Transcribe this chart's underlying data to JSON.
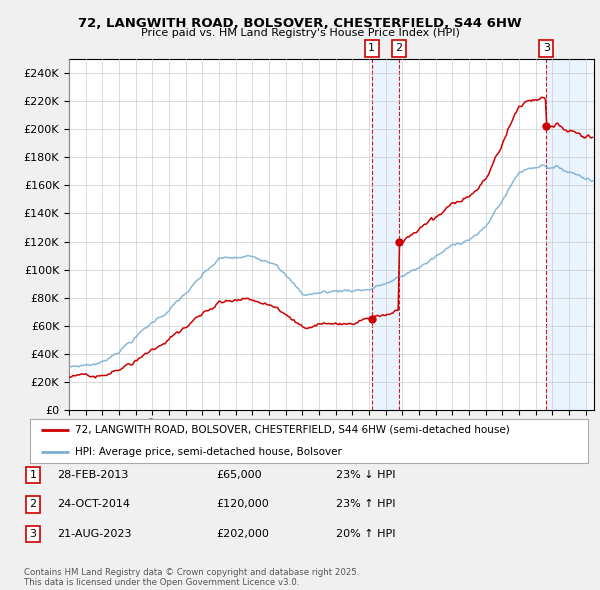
{
  "title": "72, LANGWITH ROAD, BOLSOVER, CHESTERFIELD, S44 6HW",
  "subtitle": "Price paid vs. HM Land Registry's House Price Index (HPI)",
  "ylim": [
    0,
    250000
  ],
  "yticks": [
    0,
    20000,
    40000,
    60000,
    80000,
    100000,
    120000,
    140000,
    160000,
    180000,
    200000,
    220000,
    240000
  ],
  "bg_color": "#f0f0f0",
  "plot_bg": "#ffffff",
  "sale_years": [
    2013.1667,
    2014.7917,
    2023.6333
  ],
  "sale_prices": [
    65000,
    120000,
    202000
  ],
  "sale_labels": [
    "1",
    "2",
    "3"
  ],
  "sale_pct": [
    "23% ↓ HPI",
    "23% ↑ HPI",
    "20% ↑ HPI"
  ],
  "sale_dates_str": [
    "28-FEB-2013",
    "24-OCT-2014",
    "21-AUG-2023"
  ],
  "legend_property": "72, LANGWITH ROAD, BOLSOVER, CHESTERFIELD, S44 6HW (semi-detached house)",
  "legend_hpi": "HPI: Average price, semi-detached house, Bolsover",
  "footer": "Contains HM Land Registry data © Crown copyright and database right 2025.\nThis data is licensed under the Open Government Licence v3.0.",
  "property_color": "#cc0000",
  "hpi_color": "#7bafd4",
  "shade_color": "#ddeeff",
  "xmin": 1995.0,
  "xmax": 2026.5
}
